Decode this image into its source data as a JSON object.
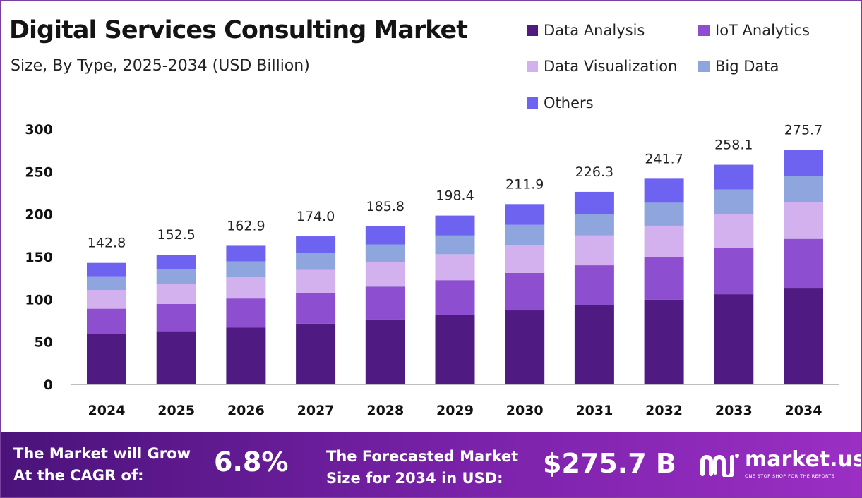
{
  "chart_data": {
    "type": "bar",
    "stacked": true,
    "title": "Digital Services Consulting Market",
    "subtitle": "Size, By Type, 2025-2034 (USD Billion)",
    "categories": [
      "2024",
      "2025",
      "2026",
      "2027",
      "2028",
      "2029",
      "2030",
      "2031",
      "2032",
      "2033",
      "2034"
    ],
    "series": [
      {
        "name": "Data Analysis",
        "color": "#4f1a82",
        "values": [
          59,
          62.5,
          67,
          71.5,
          76.5,
          81.5,
          87,
          93,
          99.5,
          106,
          113.5
        ]
      },
      {
        "name": "IoT Analytics",
        "color": "#8d4fcf",
        "values": [
          30,
          32,
          34,
          36,
          38.5,
          41,
          44,
          47,
          50,
          54,
          57.5
        ]
      },
      {
        "name": "Data Visualization",
        "color": "#d3b0ee",
        "values": [
          22,
          23.5,
          25,
          27,
          28.5,
          30.5,
          32.5,
          35,
          37,
          40,
          43
        ]
      },
      {
        "name": "Big Data",
        "color": "#8ea6dd",
        "values": [
          16,
          17,
          18.5,
          19.5,
          21,
          22,
          24,
          25.5,
          27,
          29,
          31
        ]
      },
      {
        "name": "Others",
        "color": "#6e63f0",
        "values": [
          15.8,
          17.5,
          18.4,
          20,
          21.3,
          23.4,
          24.4,
          25.8,
          28.2,
          29.1,
          30.7
        ]
      }
    ],
    "totals": [
      "142.8",
      "152.5",
      "162.9",
      "174.0",
      "185.8",
      "198.4",
      "211.9",
      "226.3",
      "241.7",
      "258.1",
      "275.7"
    ],
    "ylim": [
      0,
      300
    ],
    "yticks": [
      "0",
      "50",
      "100",
      "150",
      "200",
      "250",
      "300"
    ],
    "xlabel": "",
    "ylabel": "",
    "grid": false,
    "legend_position": "top-right"
  },
  "footer": {
    "cagr_line1": "The Market will Grow",
    "cagr_line2": "At the CAGR of:",
    "cagr_value": "6.8%",
    "forecast_line1": "The Forecasted Market",
    "forecast_line2": "Size for 2034 in USD:",
    "forecast_value": "$275.7 B"
  },
  "brand": {
    "name": "market.us",
    "tagline": "ONE STOP SHOP FOR THE REPORTS",
    "icon": "market-us-logo-icon"
  }
}
